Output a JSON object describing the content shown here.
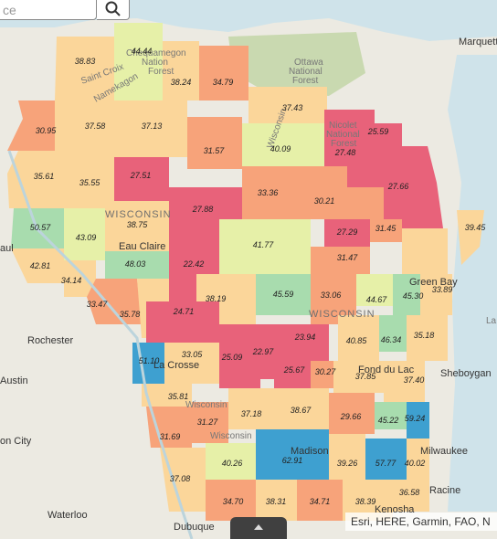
{
  "search": {
    "placeholder": "ce"
  },
  "attribution": "Esri, HERE, Garmin, FAO, N",
  "colors": {
    "water": "#cfe3ea",
    "land": "#eceae2",
    "class_very_low": "#e8627a",
    "class_low": "#f7a37a",
    "class_mid": "#fbd69a",
    "class_mid_high": "#e6f0a8",
    "class_high": "#a8dcae",
    "class_very_high": "#3ea0d0"
  },
  "place_labels": {
    "marquette": "Marquette",
    "ottawa_nf": [
      "Ottawa",
      "National",
      "Forest"
    ],
    "chequamegon_nf": [
      "Chequamegon",
      "Nation",
      "Forest"
    ],
    "nicolet_nf": [
      "Nicolet",
      "National",
      "Forest"
    ],
    "saint_croix": "Saint Croix",
    "namekagon": "Namekagon",
    "wisconsin_river": "Wisconsin",
    "wisconsin_state": "WISCONSIN",
    "wisconsin_2": "WISCONSIN",
    "eau_claire": "Eau Claire",
    "paul": "aul",
    "rochester": "Rochester",
    "austin": "Austin",
    "la_crosse": "La Crosse",
    "green_bay": "Green Bay",
    "fond_du_lac": "Fond du Lac",
    "sheboygan": "Sheboygan",
    "madison": "Madison",
    "milwaukee": "Milwaukee",
    "racine": "Racine",
    "kenosha": "Kenosha",
    "dubuque": "Dubuque",
    "waterloo": "Waterloo",
    "on_city": "on City",
    "lake": "La",
    "wisconsin_river_2": "Wisconsin",
    "wisconsin_river_3": "Wisconsin"
  },
  "county_values": [
    "38.83",
    "44.44",
    "38.24",
    "34.79",
    "37.43",
    "30.95",
    "37.58",
    "37.13",
    "31.57",
    "40.09",
    "25.59",
    "27.48",
    "35.61",
    "35.55",
    "27.51",
    "33.36",
    "30.21",
    "27.66",
    "39.45",
    "50.57",
    "43.09",
    "38.75",
    "27.88",
    "41.77",
    "27.29",
    "31.45",
    "42.81",
    "48.03",
    "22.42",
    "31.47",
    "34.14",
    "33.47",
    "38.19",
    "45.59",
    "33.06",
    "44.67",
    "45.30",
    "33.89",
    "35.78",
    "24.71",
    "35.18",
    "51.10",
    "33.05",
    "25.09",
    "22.97",
    "23.94",
    "40.85",
    "46.34",
    "25.67",
    "30.27",
    "37.85",
    "37.40",
    "35.81",
    "31.27",
    "37.18",
    "38.67",
    "29.66",
    "45.22",
    "59.24",
    "31.69",
    "40.26",
    "62.91",
    "39.26",
    "57.77",
    "40.02",
    "37.08",
    "34.70",
    "38.31",
    "34.71",
    "38.39",
    "36.58"
  ]
}
